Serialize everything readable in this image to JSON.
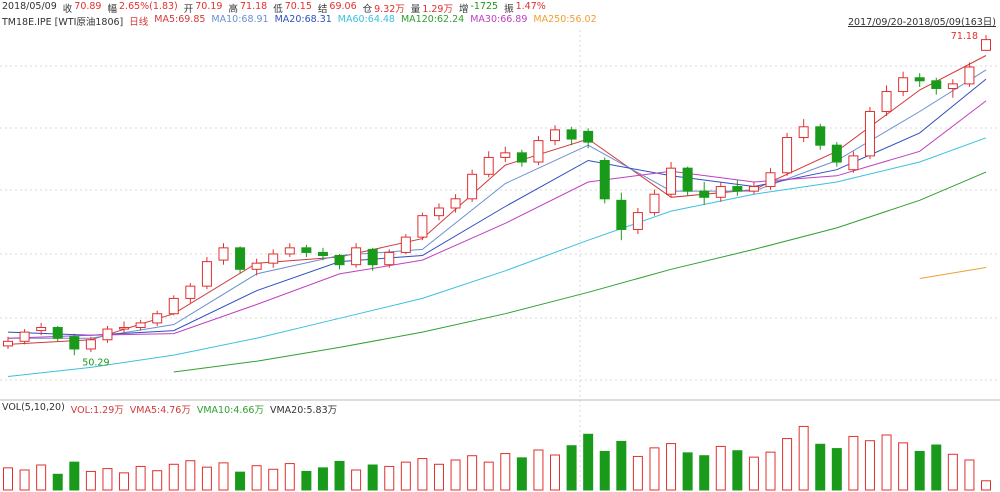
{
  "chart_data": {
    "type": "candlestick",
    "date": "2018/05/09",
    "quote": [
      {
        "label": "收",
        "value": "70.89"
      },
      {
        "label": "幅",
        "value": "2.65%(1.83)"
      },
      {
        "label": "开",
        "value": "70.19"
      },
      {
        "label": "高",
        "value": "71.18"
      },
      {
        "label": "低",
        "value": "70.15"
      },
      {
        "label": "结",
        "value": "69.06"
      },
      {
        "label": "仓",
        "value": "9.32万"
      },
      {
        "label": "量",
        "value": "1.29万"
      },
      {
        "label": "增",
        "value": "-1725"
      },
      {
        "label": "振",
        "value": "1.47%"
      }
    ],
    "symbol": "TM18E.IPE [WTI原油1806]",
    "period": "日线",
    "range_label": "2017/09/20-2018/05/09(163日)",
    "up_color": "#e0302e",
    "down_color": "#1a9a1a",
    "ylim": [
      47.5,
      72.3
    ],
    "annotations": [
      {
        "text": "71.18",
        "index": 59
      },
      {
        "text": "50.29",
        "index": 4
      }
    ],
    "open": [
      50.9,
      51.2,
      51.9,
      52.1,
      51.5,
      50.7,
      51.3,
      52.0,
      52.1,
      52.4,
      53.0,
      54.0,
      54.8,
      56.5,
      57.3,
      55.9,
      56.3,
      56.9,
      57.3,
      57.0,
      56.8,
      56.2,
      57.2,
      56.2,
      57.0,
      58.0,
      59.4,
      59.9,
      60.5,
      62.1,
      63.2,
      63.5,
      62.9,
      64.3,
      65.0,
      64.9,
      63.0,
      60.4,
      58.5,
      59.6,
      60.8,
      62.5,
      61.0,
      60.6,
      61.3,
      61.0,
      61.3,
      62.2,
      64.5,
      65.2,
      64.0,
      62.4,
      63.3,
      66.2,
      67.5,
      68.4,
      68.2,
      67.7,
      68.0,
      70.19
    ],
    "high": [
      51.5,
      52.0,
      52.4,
      52.2,
      51.7,
      51.5,
      52.2,
      52.5,
      52.6,
      53.2,
      54.2,
      55.0,
      56.7,
      57.6,
      57.4,
      56.6,
      57.2,
      57.6,
      57.5,
      57.3,
      56.9,
      57.6,
      57.3,
      57.2,
      58.2,
      59.6,
      60.2,
      60.8,
      62.4,
      63.6,
      63.9,
      63.7,
      64.6,
      65.3,
      65.2,
      65.1,
      63.2,
      60.9,
      59.9,
      61.1,
      62.9,
      62.6,
      61.6,
      61.6,
      61.7,
      61.6,
      62.5,
      64.8,
      65.7,
      65.4,
      64.2,
      63.6,
      66.5,
      67.9,
      68.8,
      68.7,
      68.4,
      68.3,
      69.4,
      71.18
    ],
    "low": [
      50.7,
      51.0,
      51.6,
      51.2,
      50.29,
      50.5,
      51.1,
      51.7,
      51.9,
      52.2,
      52.9,
      53.7,
      54.6,
      56.2,
      55.6,
      55.5,
      56.0,
      56.7,
      56.7,
      56.5,
      55.9,
      56.0,
      55.8,
      56.0,
      56.9,
      57.8,
      59.1,
      59.6,
      60.3,
      61.9,
      62.9,
      62.6,
      62.7,
      64.0,
      64.0,
      63.8,
      60.2,
      57.8,
      58.2,
      59.4,
      60.6,
      60.7,
      60.1,
      60.3,
      60.7,
      60.8,
      61.1,
      62.0,
      64.2,
      63.7,
      62.6,
      62.2,
      63.1,
      65.9,
      67.2,
      67.8,
      67.3,
      67.1,
      67.8,
      70.15
    ],
    "close": [
      51.2,
      51.8,
      52.1,
      51.4,
      50.7,
      51.3,
      52.0,
      52.1,
      52.4,
      53.0,
      54.0,
      54.8,
      56.4,
      57.3,
      55.9,
      56.3,
      56.9,
      57.3,
      57.0,
      56.8,
      56.2,
      57.3,
      56.2,
      57.0,
      58.0,
      59.4,
      59.9,
      60.5,
      62.1,
      63.2,
      63.5,
      62.9,
      64.3,
      65.0,
      64.4,
      64.2,
      60.5,
      58.5,
      59.6,
      60.8,
      62.5,
      61.0,
      60.6,
      61.3,
      61.0,
      61.3,
      62.2,
      64.5,
      65.2,
      64.0,
      62.9,
      63.3,
      66.2,
      67.5,
      68.4,
      68.2,
      67.7,
      68.0,
      69.1,
      70.89
    ],
    "ma_index": [
      0,
      5,
      10,
      15,
      20,
      25,
      30,
      35,
      40,
      45,
      50,
      55,
      59
    ],
    "ma_lines": [
      {
        "name": "MA5:69.85",
        "color": "#d03a3a",
        "values": [
          51.0,
          51.3,
          53.0,
          56.3,
          56.7,
          57.9,
          62.7,
          64.4,
          60.6,
          61.1,
          63.6,
          67.6,
          69.85
        ]
      },
      {
        "name": "MA10:68.91",
        "color": "#6a8fd0",
        "values": [
          51.4,
          51.4,
          52.3,
          55.6,
          56.8,
          57.2,
          61.5,
          64.0,
          61.0,
          61.0,
          63.0,
          66.2,
          68.91
        ]
      },
      {
        "name": "MA20:68.31",
        "color": "#2f4fc0",
        "values": [
          51.8,
          51.6,
          51.9,
          54.5,
          56.4,
          56.8,
          60.0,
          63.0,
          62.0,
          61.3,
          62.4,
          64.8,
          68.31
        ]
      },
      {
        "name": "MA60:64.48",
        "color": "#3cc0e0",
        "values": [
          48.9,
          49.5,
          50.3,
          51.4,
          52.7,
          54.0,
          55.8,
          57.8,
          59.7,
          60.8,
          61.6,
          62.9,
          64.48
        ]
      },
      {
        "name": "MA120:62.24",
        "color": "#30a030",
        "values": [
          null,
          null,
          49.2,
          49.9,
          50.8,
          51.8,
          53.0,
          54.4,
          55.9,
          57.2,
          58.6,
          60.4,
          62.24
        ]
      },
      {
        "name": "MA30:66.89",
        "color": "#c040c0",
        "values": [
          51.4,
          51.6,
          51.7,
          53.6,
          55.6,
          56.5,
          58.9,
          61.6,
          62.3,
          61.6,
          62.0,
          63.6,
          66.89
        ]
      },
      {
        "name": "MA250:56.02",
        "color": "#f0a030",
        "values": [
          null,
          null,
          null,
          null,
          null,
          null,
          null,
          null,
          null,
          null,
          null,
          55.3,
          56.02
        ]
      }
    ],
    "volume": {
      "title": "VOL(5,10,20)",
      "legend": [
        {
          "name": "VOL:1.29万",
          "color": "#d03a3a"
        },
        {
          "name": "VMA5:4.76万",
          "color": "#d03a3a"
        },
        {
          "name": "VMA10:4.66万",
          "color": "#30a030"
        },
        {
          "name": "VMA20:5.83万",
          "color": "#333333"
        }
      ],
      "ylim": [
        0,
        10.5
      ],
      "values": [
        3.1,
        2.8,
        3.5,
        2.2,
        3.9,
        2.6,
        3.0,
        2.4,
        3.3,
        2.7,
        3.6,
        4.1,
        3.2,
        3.8,
        2.5,
        3.4,
        2.9,
        3.7,
        2.6,
        3.1,
        4.0,
        2.8,
        3.5,
        3.3,
        3.9,
        4.4,
        3.6,
        4.2,
        4.8,
        3.9,
        5.1,
        4.5,
        5.6,
        4.9,
        6.2,
        7.8,
        5.4,
        6.8,
        4.7,
        5.9,
        6.5,
        5.2,
        4.8,
        6.1,
        5.5,
        4.6,
        5.3,
        7.2,
        8.9,
        6.4,
        5.8,
        7.5,
        6.9,
        7.7,
        6.6,
        5.4,
        6.3,
        5.0,
        4.2,
        1.29
      ]
    }
  }
}
